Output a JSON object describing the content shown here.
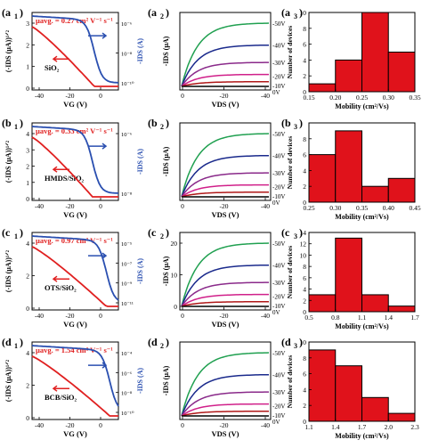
{
  "colors": {
    "red": "#e02020",
    "blue": "#2a4fb0",
    "bar": "#e0121b",
    "curves": [
      "#20a050",
      "#1a2a8c",
      "#8a2a8a",
      "#d0208a",
      "#b01818",
      "#000000"
    ]
  },
  "curve_labels": [
    "-50V",
    "-40V",
    "-30V",
    "-20V",
    "-10V",
    "0V"
  ],
  "rows": [
    {
      "transfer": {
        "panel_label": "(a",
        "panel_sub": "1",
        "panel_close": ")",
        "mobility": "μavg. = 0.27 cm² V⁻¹ s⁻¹",
        "material": "SiO₂",
        "ylabel_left": "(-IDS (μA))¹ᐟ²",
        "ylabel_right": "-IDS (A)",
        "xlabel": "VG (V)",
        "yticks_left": [
          "0",
          "1",
          "2",
          "3"
        ],
        "yticks_right": [
          "10⁻⁶",
          "10⁻⁸",
          "10⁻¹⁰"
        ],
        "xticks": [
          "-40",
          "-20",
          "0"
        ]
      },
      "output": {
        "panel_label": "(a",
        "panel_sub": "2",
        "panel_close": ")",
        "ylabel": "-IDS (μA)",
        "xlabel": "VDS (V)",
        "yticks": [],
        "xticks": [
          "0",
          "-20",
          "-40"
        ]
      },
      "chart_data": {
        "type": "bar",
        "panel_label": "(a",
        "panel_sub": "3",
        "panel_close": ")",
        "xlabel": "Mobility (cm²/Vs)",
        "ylabel": "Number of devices",
        "edges": [
          0.15,
          0.2,
          0.25,
          0.3,
          0.35
        ],
        "xticks": [
          "0.15",
          "0.20",
          "0.25",
          "0.30",
          "0.35"
        ],
        "values": [
          1,
          4,
          10,
          5
        ],
        "ylim": [
          0,
          10
        ],
        "yticks": [
          "0",
          "2",
          "4",
          "6",
          "8",
          "10"
        ]
      }
    },
    {
      "transfer": {
        "panel_label": "(b",
        "panel_sub": "1",
        "panel_close": ")",
        "mobility": "μavg. = 0.33 cm² V⁻¹ s⁻¹",
        "material": "HMDS/SiO₂",
        "ylabel_left": "(-IDS (μA))¹ᐟ²",
        "ylabel_right": "-IDS (A)",
        "xlabel": "VG (V)",
        "yticks_left": [
          "0",
          "1",
          "2",
          "3",
          "4"
        ],
        "yticks_right": [
          "10⁻⁶",
          "10⁻⁸"
        ],
        "xticks": [
          "-40",
          "-20",
          "0"
        ]
      },
      "output": {
        "panel_label": "(b",
        "panel_sub": "2",
        "panel_close": ")",
        "ylabel": "-IDS (μA)",
        "xlabel": "VDS (V)",
        "yticks": [],
        "xticks": [
          "0",
          "-20",
          "-40"
        ]
      },
      "chart_data": {
        "type": "bar",
        "panel_label": "(b",
        "panel_sub": "3",
        "panel_close": ")",
        "xlabel": "Mobility (cm²/Vs)",
        "ylabel": "Number of devices",
        "edges": [
          0.25,
          0.3,
          0.35,
          0.4,
          0.45
        ],
        "xticks": [
          "0.25",
          "0.30",
          "0.35",
          "0.40",
          "0.45"
        ],
        "values": [
          6,
          9,
          2,
          3
        ],
        "ylim": [
          0,
          10
        ],
        "yticks": [
          "0",
          "2",
          "4",
          "6",
          "8"
        ]
      }
    },
    {
      "transfer": {
        "panel_label": "(c",
        "panel_sub": "1",
        "panel_close": ")",
        "mobility": "μavg. = 0.97 cm² V⁻¹ s⁻¹",
        "material": "OTS/SiO₂",
        "ylabel_left": "(-IDS (μA))¹ᐟ²",
        "ylabel_right": "-IDS (A)",
        "xlabel": "VG (V)",
        "yticks_left": [
          "0",
          "2",
          "4"
        ],
        "yticks_right": [
          "10⁻⁵",
          "10⁻⁷",
          "10⁻⁹",
          "10⁻¹¹"
        ],
        "xticks": [
          "-40",
          "-20",
          "0"
        ]
      },
      "output": {
        "panel_label": "(c",
        "panel_sub": "2",
        "panel_close": ")",
        "ylabel": "-IDS (μA)",
        "xlabel": "VDS (V)",
        "yticks": [
          "0",
          "10",
          "20"
        ],
        "xticks": [
          "0",
          "-20",
          "-40"
        ]
      },
      "chart_data": {
        "type": "bar",
        "panel_label": "(c",
        "panel_sub": "3",
        "panel_close": ")",
        "xlabel": "Mobility (cm²/Vs)",
        "ylabel": "Number of devices",
        "edges": [
          0.5,
          0.8,
          1.1,
          1.4,
          1.7
        ],
        "xticks": [
          "0.5",
          "0.8",
          "1.1",
          "1.4",
          "1.7"
        ],
        "values": [
          3,
          13,
          3,
          1
        ],
        "ylim": [
          0,
          14
        ],
        "yticks": [
          "0",
          "2",
          "4",
          "6",
          "8",
          "10",
          "12",
          "14"
        ]
      }
    },
    {
      "transfer": {
        "panel_label": "(d",
        "panel_sub": "1",
        "panel_close": ")",
        "mobility": "μavg. = 1.54 cm² V⁻¹ s⁻¹",
        "material": "BCB/SiO₂",
        "ylabel_left": "(-IDS (μA))¹ᐟ²",
        "ylabel_right": "-IDS (A)",
        "xlabel": "VG (V)",
        "yticks_left": [
          "0",
          "2",
          "4"
        ],
        "yticks_right": [
          "10⁻⁴",
          "10⁻⁶",
          "10⁻⁸",
          "10⁻¹⁰"
        ],
        "xticks": [
          "-40",
          "-20",
          "0"
        ]
      },
      "output": {
        "panel_label": "(d",
        "panel_sub": "2",
        "panel_close": ")",
        "ylabel": "-IDS (μA)",
        "xlabel": "VDS (V)",
        "yticks": [],
        "xticks": [
          "0",
          "-20",
          "-40"
        ]
      },
      "chart_data": {
        "type": "bar",
        "panel_label": "(d",
        "panel_sub": "3",
        "panel_close": ")",
        "xlabel": "Mobility (cm²/Vs)",
        "ylabel": "Number of devices",
        "edges": [
          1.1,
          1.4,
          1.7,
          2.0,
          2.3
        ],
        "xticks": [
          "1.1",
          "1.4",
          "1.7",
          "2.0",
          "2.3"
        ],
        "values": [
          9,
          7,
          3,
          1
        ],
        "ylim": [
          0,
          10
        ],
        "yticks": [
          "0",
          "2",
          "4",
          "6",
          "8",
          "10"
        ]
      }
    }
  ]
}
